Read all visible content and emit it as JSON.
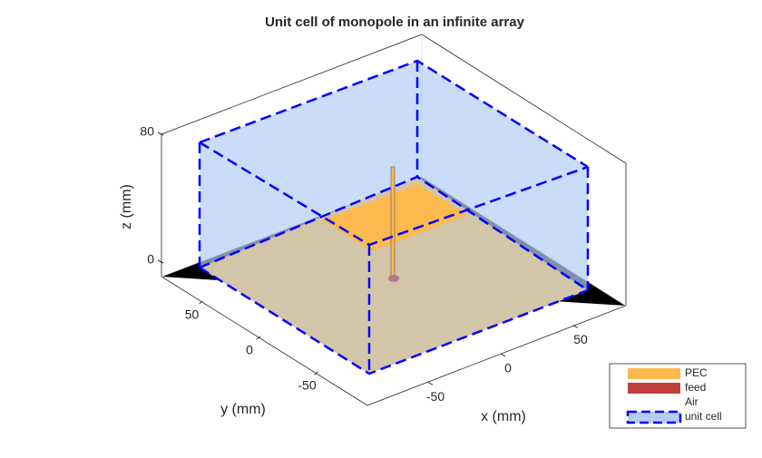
{
  "chart_data": {
    "type": "3d-geometry",
    "title": "Unit cell of monopole in an infinite array",
    "xlabel": "x (mm)",
    "ylabel": "y (mm)",
    "zlabel": "z (mm)",
    "xticks": [
      -50,
      0,
      50
    ],
    "yticks": [
      -50,
      0,
      50
    ],
    "zticks": [
      0,
      80
    ],
    "legend": [
      {
        "name": "PEC",
        "color": "#fdb94e"
      },
      {
        "name": "feed",
        "color": "#c0403c"
      },
      {
        "name": "Air",
        "color": "#ffffff"
      },
      {
        "name": "unit cell",
        "color": "#0000ff"
      }
    ]
  }
}
